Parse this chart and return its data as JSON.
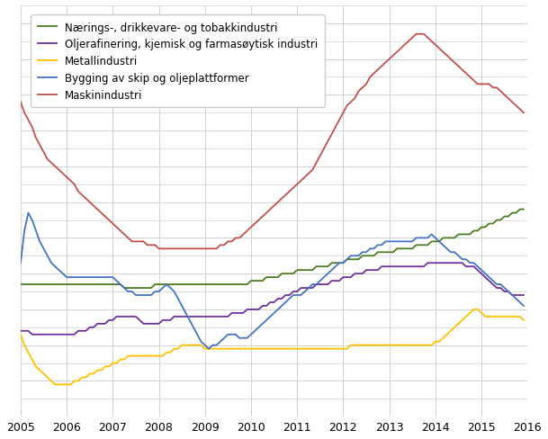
{
  "legend_entries": [
    "Nærings-, drikkevare- og tobakkindustri",
    "Oljerafinering, kjemisk og farmasøytisk industri",
    "Metallindustri",
    "Bygging av skip og oljeplattformer",
    "Maskinindustri"
  ],
  "colors": [
    "#4d7c20",
    "#7030a0",
    "#ffc000",
    "#4472c4",
    "#c0504d"
  ],
  "x_start": 2005.0,
  "x_end": 2016.0,
  "ylim": [
    60,
    175
  ],
  "yticks": [],
  "xticks": [
    2005,
    2006,
    2007,
    2008,
    2009,
    2010,
    2011,
    2012,
    2013,
    2014,
    2015,
    2016
  ],
  "grid_color": "#d0d0d0",
  "background_color": "#ffffff",
  "line_width": 1.3,
  "naerings": [
    97,
    97,
    97,
    97,
    97,
    97,
    97,
    97,
    97,
    97,
    97,
    97,
    97,
    97,
    97,
    97,
    97,
    97,
    97,
    97,
    97,
    97,
    97,
    97,
    97,
    97,
    97,
    96,
    96,
    96,
    96,
    96,
    96,
    96,
    96,
    97,
    97,
    97,
    97,
    97,
    97,
    97,
    97,
    97,
    97,
    97,
    97,
    97,
    97,
    97,
    97,
    97,
    97,
    97,
    97,
    97,
    97,
    97,
    97,
    97,
    98,
    98,
    98,
    98,
    99,
    99,
    99,
    99,
    100,
    100,
    100,
    100,
    101,
    101,
    101,
    101,
    101,
    102,
    102,
    102,
    102,
    103,
    103,
    103,
    103,
    104,
    104,
    104,
    104,
    105,
    105,
    105,
    105,
    106,
    106,
    106,
    106,
    106,
    107,
    107,
    107,
    107,
    107,
    108,
    108,
    108,
    108,
    109,
    109,
    109,
    110,
    110,
    110,
    110,
    111,
    111,
    111,
    111,
    112,
    112,
    113,
    113,
    114,
    114,
    115,
    115,
    116,
    116,
    117,
    117,
    118,
    118
  ],
  "olje": [
    84,
    84,
    84,
    83,
    83,
    83,
    83,
    83,
    83,
    83,
    83,
    83,
    83,
    83,
    83,
    84,
    84,
    84,
    85,
    85,
    86,
    86,
    86,
    87,
    87,
    88,
    88,
    88,
    88,
    88,
    88,
    87,
    86,
    86,
    86,
    86,
    86,
    87,
    87,
    87,
    88,
    88,
    88,
    88,
    88,
    88,
    88,
    88,
    88,
    88,
    88,
    88,
    88,
    88,
    88,
    89,
    89,
    89,
    89,
    90,
    90,
    90,
    90,
    91,
    91,
    92,
    92,
    93,
    93,
    94,
    94,
    95,
    95,
    96,
    96,
    96,
    96,
    97,
    97,
    97,
    97,
    98,
    98,
    98,
    99,
    99,
    99,
    100,
    100,
    100,
    101,
    101,
    101,
    101,
    102,
    102,
    102,
    102,
    102,
    102,
    102,
    102,
    102,
    102,
    102,
    102,
    103,
    103,
    103,
    103,
    103,
    103,
    103,
    103,
    103,
    103,
    102,
    102,
    102,
    101,
    100,
    99,
    98,
    97,
    96,
    96,
    95,
    95,
    94,
    94,
    94,
    94
  ],
  "metall": [
    83,
    80,
    78,
    76,
    74,
    73,
    72,
    71,
    70,
    69,
    69,
    69,
    69,
    69,
    70,
    70,
    71,
    71,
    72,
    72,
    73,
    73,
    74,
    74,
    75,
    75,
    76,
    76,
    77,
    77,
    77,
    77,
    77,
    77,
    77,
    77,
    77,
    77,
    78,
    78,
    79,
    79,
    80,
    80,
    80,
    80,
    80,
    80,
    79,
    79,
    79,
    79,
    79,
    79,
    79,
    79,
    79,
    79,
    79,
    79,
    79,
    79,
    79,
    79,
    79,
    79,
    79,
    79,
    79,
    79,
    79,
    79,
    79,
    79,
    79,
    79,
    79,
    79,
    79,
    79,
    79,
    79,
    79,
    79,
    79,
    79,
    80,
    80,
    80,
    80,
    80,
    80,
    80,
    80,
    80,
    80,
    80,
    80,
    80,
    80,
    80,
    80,
    80,
    80,
    80,
    80,
    80,
    80,
    81,
    81,
    82,
    83,
    84,
    85,
    86,
    87,
    88,
    89,
    90,
    90,
    89,
    88,
    88,
    88,
    88,
    88,
    88,
    88,
    88,
    88,
    88,
    87
  ],
  "skip": [
    103,
    112,
    117,
    115,
    112,
    109,
    107,
    105,
    103,
    102,
    101,
    100,
    99,
    99,
    99,
    99,
    99,
    99,
    99,
    99,
    99,
    99,
    99,
    99,
    99,
    98,
    97,
    96,
    95,
    95,
    94,
    94,
    94,
    94,
    94,
    95,
    95,
    96,
    97,
    96,
    95,
    93,
    91,
    89,
    87,
    85,
    83,
    81,
    80,
    79,
    80,
    80,
    81,
    82,
    83,
    83,
    83,
    82,
    82,
    82,
    83,
    84,
    85,
    86,
    87,
    88,
    89,
    90,
    91,
    92,
    93,
    94,
    94,
    94,
    95,
    96,
    97,
    97,
    98,
    99,
    100,
    101,
    102,
    103,
    103,
    104,
    105,
    105,
    105,
    106,
    106,
    107,
    107,
    108,
    108,
    109,
    109,
    109,
    109,
    109,
    109,
    109,
    109,
    110,
    110,
    110,
    110,
    111,
    110,
    109,
    108,
    107,
    106,
    106,
    105,
    104,
    104,
    103,
    103,
    102,
    101,
    100,
    99,
    98,
    97,
    97,
    96,
    95,
    94,
    93,
    92,
    91
  ],
  "maskin": [
    148,
    145,
    143,
    141,
    138,
    136,
    134,
    132,
    131,
    130,
    129,
    128,
    127,
    126,
    125,
    123,
    122,
    121,
    120,
    119,
    118,
    117,
    116,
    115,
    114,
    113,
    112,
    111,
    110,
    109,
    109,
    109,
    109,
    108,
    108,
    108,
    107,
    107,
    107,
    107,
    107,
    107,
    107,
    107,
    107,
    107,
    107,
    107,
    107,
    107,
    107,
    107,
    108,
    108,
    109,
    109,
    110,
    110,
    111,
    112,
    113,
    114,
    115,
    116,
    117,
    118,
    119,
    120,
    121,
    122,
    123,
    124,
    125,
    126,
    127,
    128,
    129,
    131,
    133,
    135,
    137,
    139,
    141,
    143,
    145,
    147,
    148,
    149,
    151,
    152,
    153,
    155,
    156,
    157,
    158,
    159,
    160,
    161,
    162,
    163,
    164,
    165,
    166,
    167,
    167,
    167,
    166,
    165,
    164,
    163,
    162,
    161,
    160,
    159,
    158,
    157,
    156,
    155,
    154,
    153,
    153,
    153,
    153,
    152,
    152,
    151,
    150,
    149,
    148,
    147,
    146,
    145
  ]
}
